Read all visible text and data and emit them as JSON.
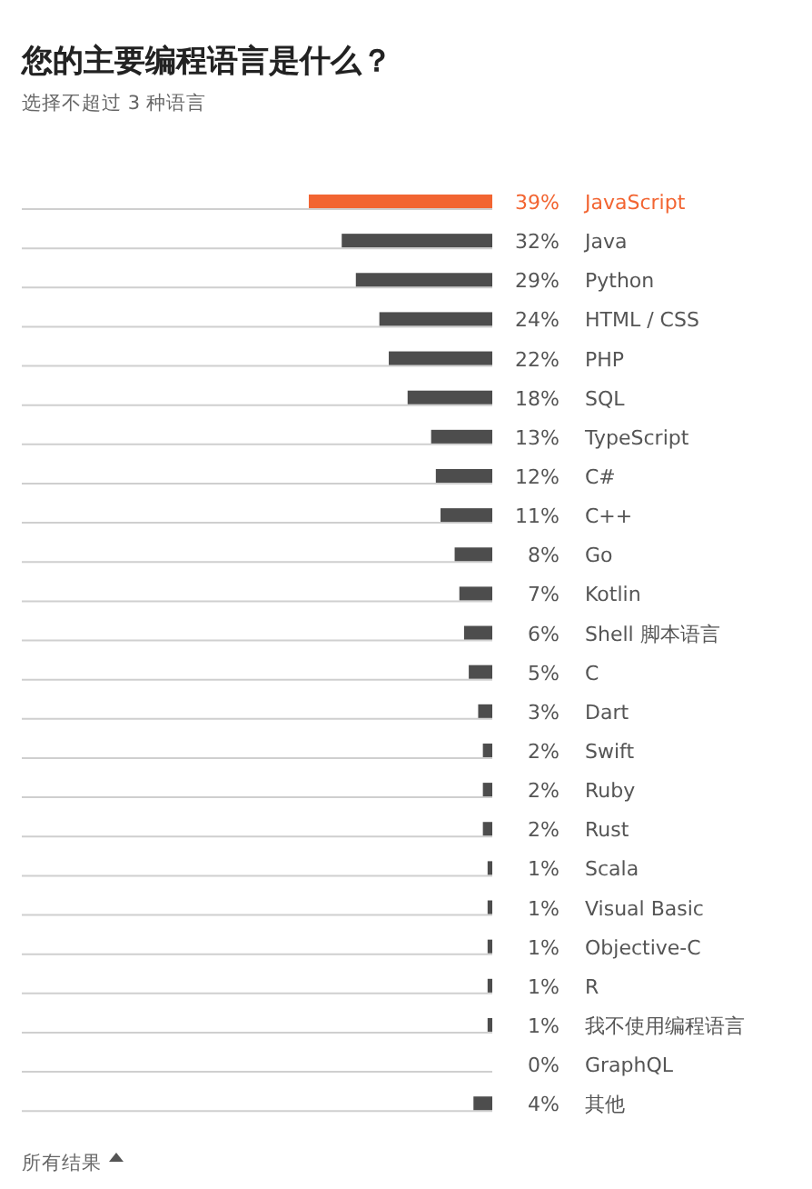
{
  "chart_data": {
    "type": "bar",
    "orientation": "horizontal",
    "title": "您的主要编程语言是什么？",
    "subtitle": "选择不超过 3 种语言",
    "categories": [
      "JavaScript",
      "Java",
      "Python",
      "HTML / CSS",
      "PHP",
      "SQL",
      "TypeScript",
      "C#",
      "C++",
      "Go",
      "Kotlin",
      "Shell 脚本语言",
      "C",
      "Dart",
      "Swift",
      "Ruby",
      "Rust",
      "Scala",
      "Visual Basic",
      "Objective-C",
      "R",
      "我不使用编程语言",
      "GraphQL",
      "其他"
    ],
    "values": [
      39,
      32,
      29,
      24,
      22,
      18,
      13,
      12,
      11,
      8,
      7,
      6,
      5,
      3,
      2,
      2,
      2,
      1,
      1,
      1,
      1,
      1,
      0,
      4
    ],
    "value_labels": [
      "39%",
      "32%",
      "29%",
      "24%",
      "22%",
      "18%",
      "13%",
      "12%",
      "11%",
      "8%",
      "7%",
      "6%",
      "5%",
      "3%",
      "2%",
      "2%",
      "2%",
      "1%",
      "1%",
      "1%",
      "1%",
      "1%",
      "0%",
      "4%"
    ],
    "colors": [
      "#f26532",
      "#4d4d4d",
      "#4d4d4d",
      "#4d4d4d",
      "#4d4d4d",
      "#4d4d4d",
      "#4d4d4d",
      "#4d4d4d",
      "#4d4d4d",
      "#4d4d4d",
      "#4d4d4d",
      "#4d4d4d",
      "#4d4d4d",
      "#4d4d4d",
      "#4d4d4d",
      "#4d4d4d",
      "#4d4d4d",
      "#4d4d4d",
      "#4d4d4d",
      "#4d4d4d",
      "#4d4d4d",
      "#4d4d4d",
      "#4d4d4d",
      "#4d4d4d"
    ],
    "xlim": [
      100,
      0
    ],
    "annotations": [
      "所有结果"
    ]
  }
}
